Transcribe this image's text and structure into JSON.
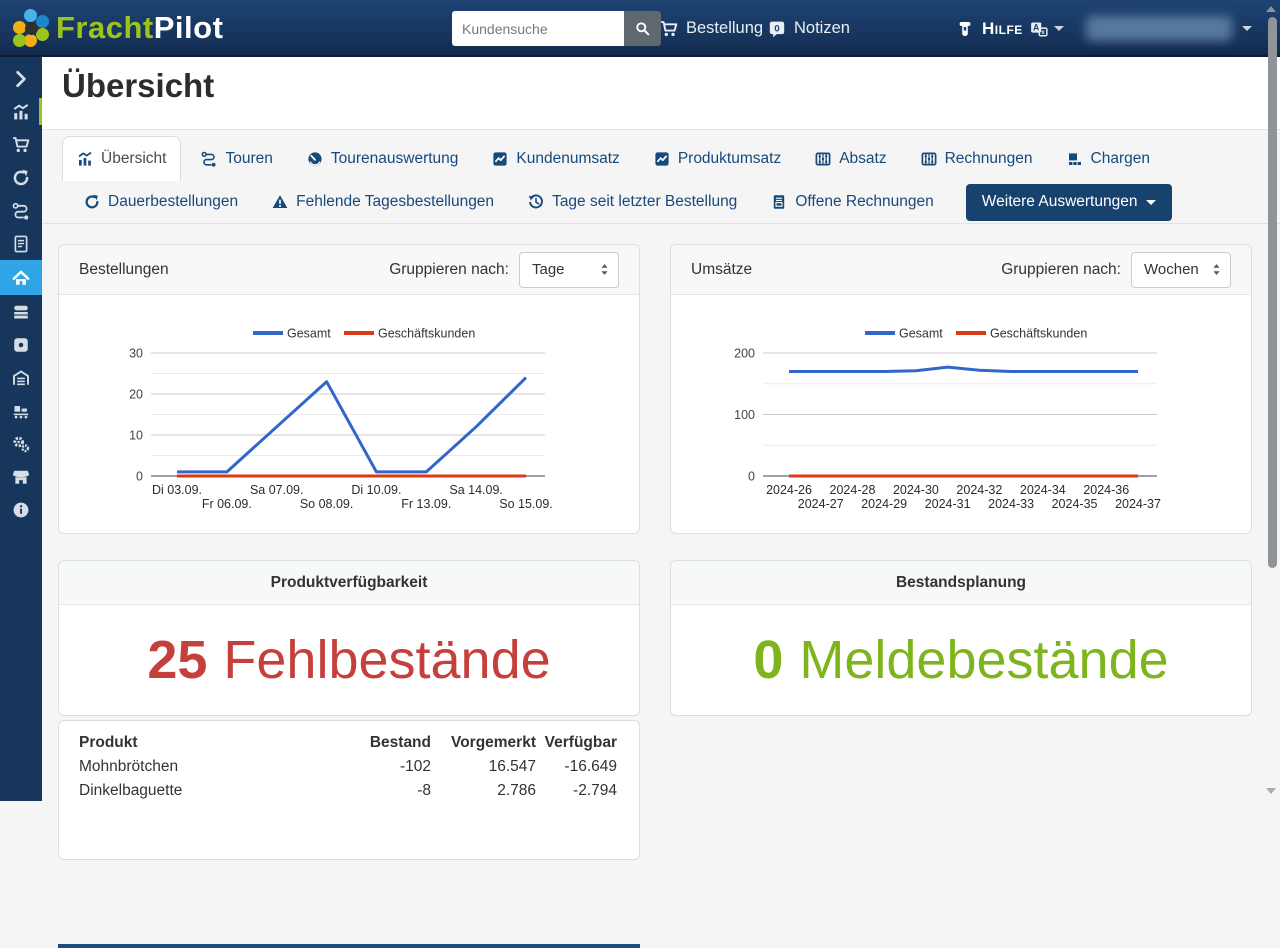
{
  "navbar": {
    "brand": {
      "part1": "Fracht",
      "part2": "Pilot"
    },
    "search": {
      "placeholder": "Kundensuche"
    },
    "links": {
      "bestellung": "Bestellung",
      "notizen": "Notizen",
      "notizen_badge": "0",
      "hilfe": "Hilfe"
    }
  },
  "sidebar": {
    "active_item": "home",
    "indicator_item": "statistics",
    "items": [
      {
        "name": "expand",
        "icon": "chevron-right-icon"
      },
      {
        "name": "statistics",
        "icon": "analytics-icon"
      },
      {
        "name": "cart",
        "icon": "cart-icon"
      },
      {
        "name": "recurring-orders",
        "icon": "refresh-icon"
      },
      {
        "name": "tours",
        "icon": "route-icon"
      },
      {
        "name": "documents",
        "icon": "document-icon"
      },
      {
        "name": "home",
        "icon": "home-icon"
      },
      {
        "name": "products",
        "icon": "bakery-icon"
      },
      {
        "name": "packages",
        "icon": "box-icon"
      },
      {
        "name": "warehouse",
        "icon": "warehouse-icon"
      },
      {
        "name": "production",
        "icon": "production-icon"
      },
      {
        "name": "settings",
        "icon": "gears-icon"
      },
      {
        "name": "shop",
        "icon": "store-icon"
      },
      {
        "name": "info",
        "icon": "info-icon"
      }
    ]
  },
  "page": {
    "title": "Übersicht"
  },
  "tabs": {
    "row1": [
      {
        "label": "Übersicht",
        "icon": "analytics-icon",
        "active": true
      },
      {
        "label": "Touren",
        "icon": "route-icon"
      },
      {
        "label": "Tourenauswertung",
        "icon": "speedometer-icon"
      },
      {
        "label": "Kundenumsatz",
        "icon": "chart-line-icon"
      },
      {
        "label": "Produktumsatz",
        "icon": "chart-line-icon"
      },
      {
        "label": "Absatz",
        "icon": "abacus-icon"
      },
      {
        "label": "Rechnungen",
        "icon": "abacus-icon"
      },
      {
        "label": "Chargen",
        "icon": "boxes-icon"
      }
    ],
    "row2": [
      {
        "label": "Dauerbestellungen",
        "icon": "refresh-icon"
      },
      {
        "label": "Fehlende Tagesbestellungen",
        "icon": "warning-icon"
      },
      {
        "label": "Tage seit letzter Bestellung",
        "icon": "history-icon"
      },
      {
        "label": "Offene Rechnungen",
        "icon": "invoice-icon"
      }
    ],
    "more_button": {
      "label": "Weitere Auswertungen"
    }
  },
  "cards": {
    "bestellungen": {
      "title": "Bestellungen",
      "group_label": "Gruppieren nach:",
      "group_value": "Tage"
    },
    "umsaetze": {
      "title": "Umsätze",
      "group_label": "Gruppieren nach:",
      "group_value": "Wochen"
    },
    "produktverfuegbarkeit": {
      "title": "Produktverfügbarkeit",
      "count": "25",
      "label": "Fehlbestände",
      "color": "#c5403c"
    },
    "bestandsplanung": {
      "title": "Bestandsplanung",
      "count": "0",
      "label": "Meldebestände",
      "color": "#7eb51e"
    }
  },
  "table": {
    "headers": [
      "Produkt",
      "Bestand",
      "Vorgemerkt",
      "Verfügbar"
    ],
    "rows": [
      [
        "Mohnbrötchen",
        "-102",
        "16.547",
        "-16.649"
      ],
      [
        "Dinkelbaguette",
        "-8",
        "2.786",
        "-2.794"
      ]
    ]
  },
  "chart_data": [
    {
      "type": "line",
      "title": "Bestellungen",
      "group_by": "Tage",
      "categories": [
        "Di 03.09.",
        "Fr 06.09.",
        "Sa 07.09.",
        "So 08.09.",
        "Di 10.09.",
        "Fr 13.09.",
        "Sa 14.09.",
        "So 15.09."
      ],
      "series": [
        {
          "name": "Gesamt",
          "color": "#3366cc",
          "values": [
            1,
            1,
            12,
            23,
            1,
            1,
            12,
            24
          ]
        },
        {
          "name": "Geschäftskunden",
          "color": "#dc3912",
          "values": [
            0,
            0,
            0,
            0,
            0,
            0,
            0,
            0
          ]
        }
      ],
      "ylim": [
        0,
        30
      ],
      "yticks": [
        0,
        10,
        20,
        30
      ],
      "minor_ticks": [
        5,
        15,
        25
      ],
      "grid": true,
      "legend_position": "top"
    },
    {
      "type": "line",
      "title": "Umsätze",
      "group_by": "Wochen",
      "categories": [
        "2024-26",
        "2024-27",
        "2024-28",
        "2024-29",
        "2024-30",
        "2024-31",
        "2024-32",
        "2024-33",
        "2024-34",
        "2024-35",
        "2024-36",
        "2024-37"
      ],
      "series": [
        {
          "name": "Gesamt",
          "color": "#3366cc",
          "values": [
            170,
            170,
            170,
            170,
            171,
            177,
            172,
            170,
            170,
            170,
            170,
            170
          ]
        },
        {
          "name": "Geschäftskunden",
          "color": "#dc3912",
          "values": [
            0,
            0,
            0,
            0,
            0,
            0,
            0,
            0,
            0,
            0,
            0,
            0
          ]
        }
      ],
      "ylim": [
        0,
        200
      ],
      "yticks": [
        0,
        100,
        200
      ],
      "minor_ticks": [
        50,
        150
      ],
      "grid": true,
      "legend_position": "top"
    }
  ],
  "colors": {
    "navbar": "#1c4170",
    "sidebar": "#17365c",
    "active_blue": "#2fa4e7",
    "lime": "#9cc41c",
    "tab_text": "#17497b",
    "button_navy": "#17426d",
    "series_blue": "#3366cc",
    "series_red": "#dc3912"
  }
}
